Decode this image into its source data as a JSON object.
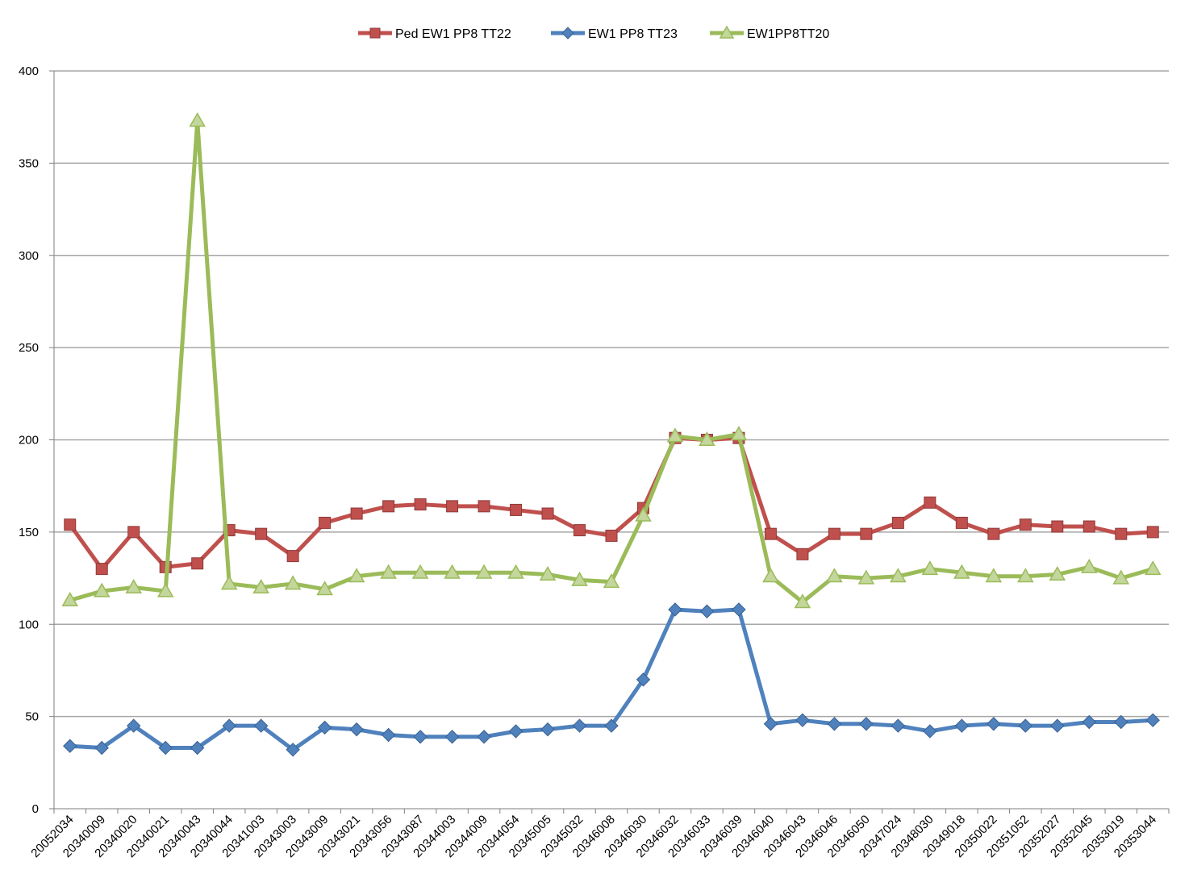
{
  "chart_data": {
    "type": "line",
    "title": "",
    "xlabel": "",
    "ylabel": "",
    "ylim": [
      0,
      400
    ],
    "yticks": [
      0,
      50,
      100,
      150,
      200,
      250,
      300,
      350,
      400
    ],
    "grid": true,
    "legend_position": "top-center",
    "categories": [
      "20052034",
      "20340009",
      "20340020",
      "20340021",
      "20340043",
      "20340044",
      "20341003",
      "20343003",
      "20343009",
      "20343021",
      "20343056",
      "20343087",
      "20344003",
      "20344009",
      "20344054",
      "20345005",
      "20345032",
      "20346008",
      "20346030",
      "20346032",
      "20346033",
      "20346039",
      "20346040",
      "20346043",
      "20346046",
      "20346050",
      "20347024",
      "20348030",
      "20349018",
      "20350022",
      "20351052",
      "20352027",
      "20352045",
      "20353019",
      "20353044"
    ],
    "series": [
      {
        "name": "Ped EW1 PP8 TT22",
        "color": "#c0504d",
        "marker": "square",
        "values": [
          154,
          130,
          150,
          131,
          133,
          151,
          149,
          137,
          155,
          160,
          164,
          165,
          164,
          164,
          162,
          160,
          151,
          148,
          163,
          201,
          200,
          201,
          149,
          138,
          149,
          149,
          155,
          166,
          155,
          149,
          154,
          153,
          153,
          149,
          150
        ]
      },
      {
        "name": "EW1 PP8 TT23",
        "color": "#4f81bd",
        "marker": "diamond",
        "values": [
          34,
          33,
          45,
          33,
          33,
          45,
          45,
          32,
          44,
          43,
          40,
          39,
          39,
          39,
          42,
          43,
          45,
          45,
          70,
          108,
          107,
          108,
          46,
          48,
          46,
          46,
          45,
          42,
          45,
          46,
          45,
          45,
          47,
          47,
          48
        ]
      },
      {
        "name": "EW1PP8TT20",
        "color": "#9bbb59",
        "marker": "triangle",
        "values": [
          113,
          118,
          120,
          118,
          373,
          122,
          120,
          122,
          119,
          126,
          128,
          128,
          128,
          128,
          128,
          127,
          124,
          123,
          159,
          202,
          200,
          203,
          126,
          112,
          126,
          125,
          126,
          130,
          128,
          126,
          126,
          127,
          131,
          125,
          130
        ]
      }
    ]
  }
}
